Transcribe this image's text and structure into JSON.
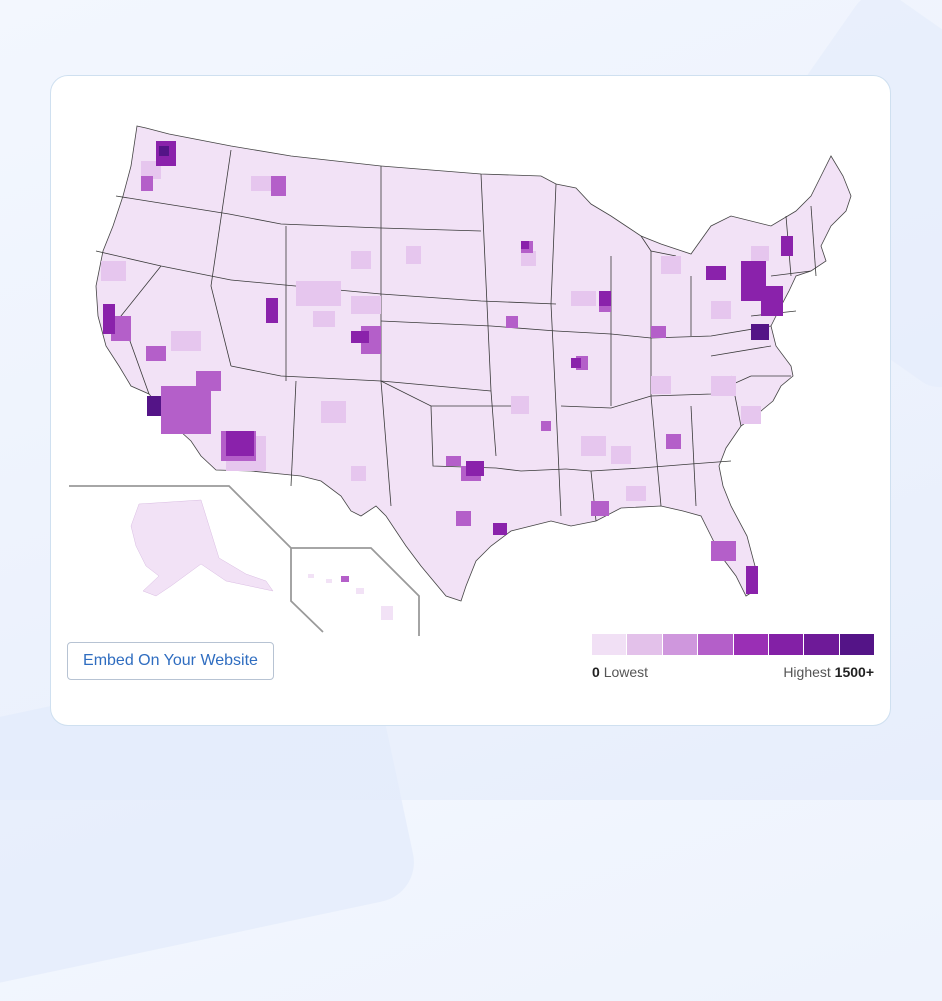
{
  "map": {
    "type": "choropleth",
    "region": "United States counties",
    "colors": {
      "background_fill": "#f2e2f6",
      "border": "#3a3a3a",
      "inset_border": "#9a9a9a"
    }
  },
  "embed_button": {
    "label": "Embed On Your Website"
  },
  "legend": {
    "low_value": "0",
    "low_label": "Lowest",
    "high_label": "Highest",
    "high_value": "1500+",
    "scale": [
      "#f1e0f5",
      "#e3c1ea",
      "#cf97dd",
      "#b45fc9",
      "#9a2fb5",
      "#8320a6",
      "#6e1a98",
      "#541487"
    ]
  }
}
